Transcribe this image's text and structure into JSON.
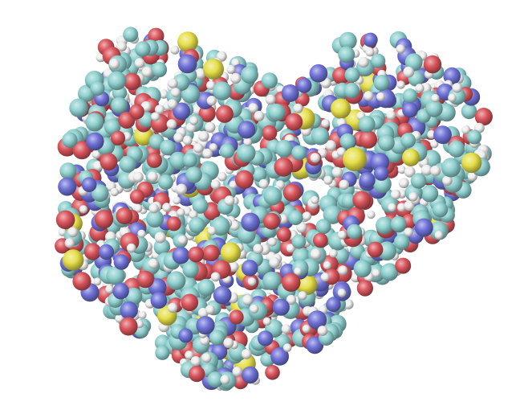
{
  "scene": {
    "background_color": "#ffffff",
    "render_style": "space-filling",
    "atom_colors": {
      "carbon": "#8fd0cf",
      "hydrogen": "#eeeeee",
      "oxygen": "#d9555c",
      "nitrogen": "#6f72d6",
      "sulfur": "#e6df4a"
    }
  }
}
